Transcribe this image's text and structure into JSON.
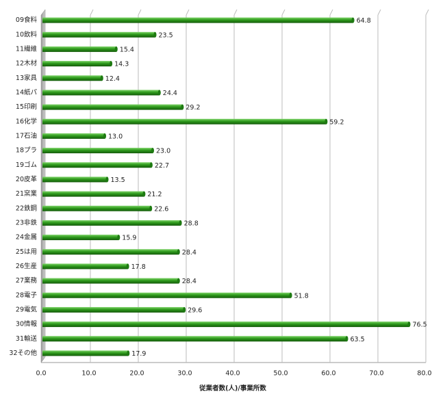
{
  "chart_data": {
    "type": "bar",
    "orientation": "horizontal",
    "x_label": "従業者数(人)/事業所数",
    "categories": [
      "09食料",
      "10飲料",
      "11繊維",
      "12木材",
      "13家具",
      "14紙パ",
      "15印刷",
      "16化学",
      "17石油",
      "18プラ",
      "19ゴム",
      "20皮革",
      "21窯業",
      "22鉄鋼",
      "23非鉄",
      "24金属",
      "25は用",
      "26生産",
      "27業務",
      "28電子",
      "29電気",
      "30情報",
      "31輸送",
      "32その他"
    ],
    "values": [
      64.8,
      23.5,
      15.4,
      14.3,
      12.4,
      24.4,
      29.2,
      59.2,
      13.0,
      23.0,
      22.7,
      13.5,
      21.2,
      22.6,
      28.8,
      15.9,
      28.4,
      17.8,
      28.4,
      51.8,
      29.6,
      76.5,
      63.5,
      17.9
    ],
    "value_labels": [
      "64.8",
      "23.5",
      "15.4",
      "14.3",
      "12.4",
      "24.4",
      "29.2",
      "59.2",
      "13.0",
      "23.0",
      "22.7",
      "13.5",
      "21.2",
      "22.6",
      "28.8",
      "15.9",
      "28.4",
      "17.8",
      "28.4",
      "51.8",
      "29.6",
      "76.5",
      "63.5",
      "17.9"
    ],
    "color": "#2e9a1c",
    "xlim": [
      0,
      80
    ],
    "xticks": [
      {
        "value": 0,
        "label": "0.0"
      },
      {
        "value": 10,
        "label": "10.0"
      },
      {
        "value": 20,
        "label": "20.0"
      },
      {
        "value": 30,
        "label": "30.0"
      },
      {
        "value": 40,
        "label": "40.0"
      },
      {
        "value": 50,
        "label": "50.0"
      },
      {
        "value": 60,
        "label": "60.0"
      },
      {
        "value": 70,
        "label": "70.0"
      },
      {
        "value": 80,
        "label": "80.0"
      }
    ],
    "grid": true
  }
}
